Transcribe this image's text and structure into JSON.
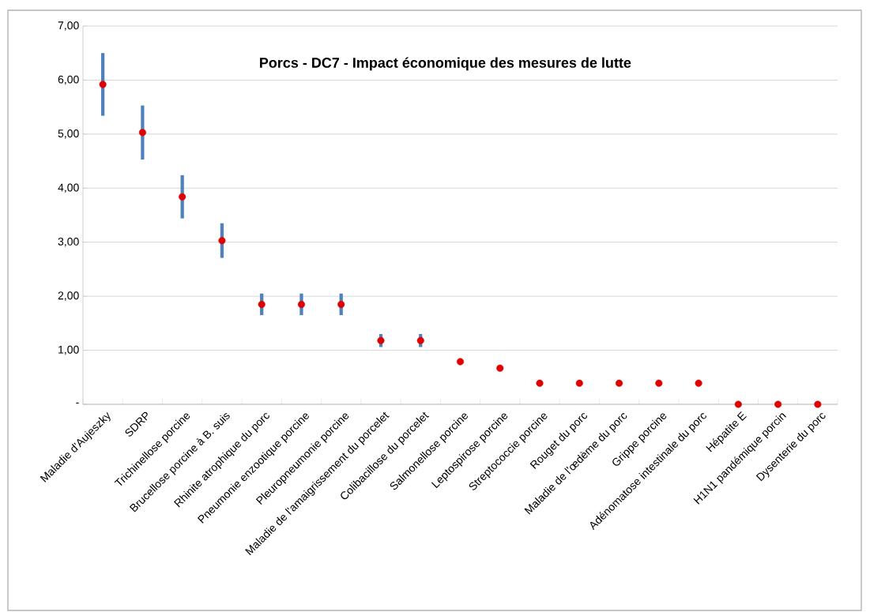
{
  "chart_data": {
    "type": "scatter",
    "title": "Porcs - DC7 - Impact économique des mesures de lutte",
    "categories": [
      "Maladie d'Aujeszky",
      "SDRP",
      "Trichinellose porcine",
      "Brucellose porcine à B. suis",
      "Rhinite atrophique du porc",
      "Pneumonie enzootique porcine",
      "Pleuropneumonie porcine",
      "Maladie de l'amaigrissement  du porcelet",
      "Colibacillose du porcelet",
      "Salmonellose porcine",
      "Leptospirose porcine",
      "Streptococcie porcine",
      "Rouget du porc",
      "Maladie de l'œdème du porc",
      "Grippe porcine",
      "Adénomatose intestinale du porc",
      "Hépatite E",
      "H1N1 pandémique porcin",
      "Dysenterie du porc"
    ],
    "series": [
      {
        "color": "#e00000",
        "values": [
          5.92,
          5.03,
          3.84,
          3.03,
          1.85,
          1.85,
          1.85,
          1.18,
          1.18,
          0.79,
          0.67,
          0.39,
          0.39,
          0.39,
          0.39,
          0.39,
          0,
          0,
          0
        ],
        "errors": [
          0.58,
          0.5,
          0.4,
          0.32,
          0.2,
          0.2,
          0.2,
          0.12,
          0.12,
          null,
          null,
          null,
          null,
          null,
          null,
          null,
          null,
          null,
          null
        ]
      }
    ],
    "ylim": [
      0,
      7
    ],
    "yticks": [
      {
        "value": 0,
        "label": "-"
      },
      {
        "value": 1,
        "label": "1,00"
      },
      {
        "value": 2,
        "label": "2,00"
      },
      {
        "value": 3,
        "label": "3,00"
      },
      {
        "value": 4,
        "label": "4,00"
      },
      {
        "value": 5,
        "label": "5,00"
      },
      {
        "value": 6,
        "label": "6,00"
      },
      {
        "value": 7,
        "label": "7,00"
      }
    ],
    "grid": "y"
  }
}
